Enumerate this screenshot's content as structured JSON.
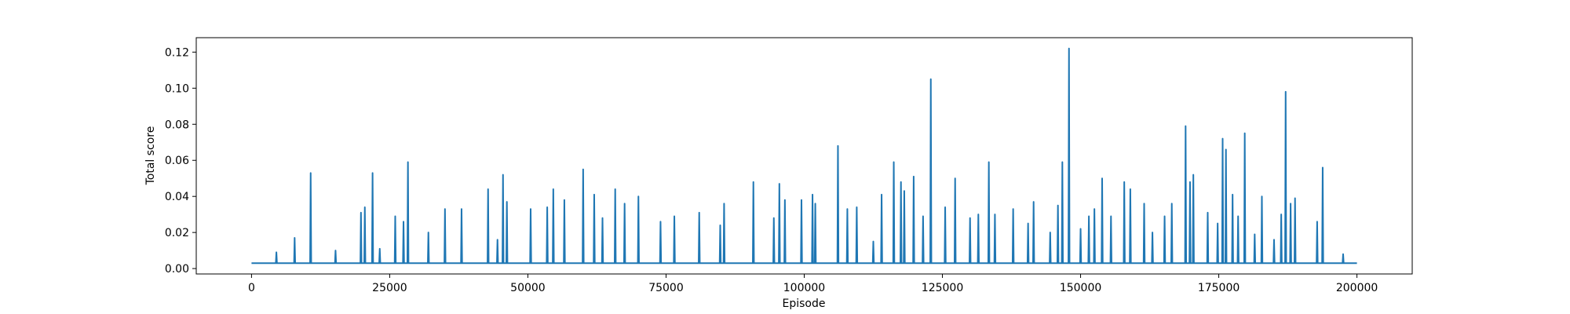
{
  "chart_data": {
    "type": "line",
    "x_label": "Episode",
    "y_label": "Total score",
    "color": "#1f77b4",
    "xlim": [
      -10000,
      210000
    ],
    "ylim": [
      -0.003,
      0.128
    ],
    "xticks": [
      0,
      25000,
      50000,
      75000,
      100000,
      125000,
      150000,
      175000,
      200000
    ],
    "yticks": [
      {
        "value": 0,
        "label": "0.00"
      },
      {
        "value": 0.02,
        "label": "0.02"
      },
      {
        "value": 0.04,
        "label": "0.04"
      },
      {
        "value": 0.06,
        "label": "0.06"
      },
      {
        "value": 0.08,
        "label": "0.08"
      },
      {
        "value": 0.1,
        "label": "0.10"
      },
      {
        "value": 0.12,
        "label": "0.12"
      }
    ],
    "x": [
      0,
      4400,
      4500,
      4600,
      7700,
      7800,
      7900,
      10600,
      10700,
      10800,
      15100,
      15200,
      15300,
      19700,
      19800,
      19900,
      20400,
      20500,
      20600,
      21800,
      21900,
      22000,
      23100,
      23200,
      23300,
      25900,
      26000,
      26100,
      27400,
      27500,
      27600,
      28200,
      28300,
      28400,
      31900,
      32000,
      32100,
      34900,
      35000,
      35100,
      37900,
      38000,
      38100,
      42700,
      42800,
      42900,
      44400,
      44500,
      44600,
      45400,
      45500,
      45600,
      46100,
      46200,
      46300,
      50400,
      50500,
      50600,
      53400,
      53500,
      53600,
      54500,
      54600,
      54700,
      56500,
      56600,
      56700,
      59900,
      60000,
      60100,
      61900,
      62000,
      62100,
      63400,
      63500,
      63600,
      65700,
      65800,
      65900,
      67400,
      67500,
      67600,
      69900,
      70000,
      70100,
      73900,
      74000,
      74100,
      76400,
      76500,
      76600,
      80900,
      81000,
      81100,
      84700,
      84800,
      84900,
      85400,
      85500,
      85600,
      90700,
      90800,
      90900,
      94400,
      94500,
      94600,
      95400,
      95500,
      95600,
      96400,
      96500,
      96600,
      99400,
      99500,
      99600,
      101400,
      101500,
      101600,
      101900,
      102000,
      102100,
      106000,
      106100,
      106200,
      107700,
      107800,
      107900,
      109400,
      109500,
      109600,
      112400,
      112500,
      112600,
      113900,
      114000,
      114100,
      116100,
      116200,
      116300,
      117400,
      117500,
      117600,
      118000,
      118100,
      118200,
      119700,
      119800,
      119900,
      121400,
      121500,
      121600,
      122800,
      122900,
      123000,
      125400,
      125500,
      125600,
      127200,
      127300,
      127400,
      129900,
      130000,
      130100,
      131400,
      131500,
      131600,
      133300,
      133400,
      133500,
      134400,
      134500,
      134600,
      137700,
      137800,
      137900,
      140400,
      140500,
      140600,
      141400,
      141500,
      141600,
      144400,
      144500,
      144600,
      145800,
      145900,
      146000,
      146600,
      146700,
      146800,
      147800,
      147900,
      148000,
      149900,
      150000,
      150100,
      151400,
      151500,
      151600,
      152400,
      152500,
      152600,
      153800,
      153900,
      154000,
      155400,
      155500,
      155600,
      157800,
      157900,
      158000,
      158900,
      159000,
      159100,
      161400,
      161500,
      161600,
      162900,
      163000,
      163100,
      165100,
      165200,
      165300,
      166400,
      166500,
      166600,
      168900,
      169000,
      169100,
      169700,
      169800,
      169900,
      170300,
      170400,
      170500,
      172900,
      173000,
      173100,
      174700,
      174800,
      174900,
      175600,
      175700,
      175800,
      176200,
      176300,
      176400,
      177400,
      177500,
      177600,
      178400,
      178500,
      178600,
      179600,
      179700,
      179800,
      181400,
      181500,
      181600,
      182700,
      182800,
      182900,
      184900,
      185000,
      185100,
      186200,
      186300,
      186400,
      187000,
      187100,
      187200,
      187900,
      188000,
      188100,
      188700,
      188800,
      188900,
      192700,
      192800,
      192900,
      193700,
      193800,
      193900,
      197400,
      197500,
      197600,
      200000
    ],
    "values": [
      0.003,
      0.003,
      0.009,
      0.003,
      0.003,
      0.017,
      0.003,
      0.003,
      0.053,
      0.003,
      0.003,
      0.01,
      0.003,
      0.003,
      0.031,
      0.003,
      0.003,
      0.034,
      0.003,
      0.003,
      0.053,
      0.003,
      0.003,
      0.011,
      0.003,
      0.003,
      0.029,
      0.003,
      0.003,
      0.026,
      0.003,
      0.003,
      0.059,
      0.003,
      0.003,
      0.02,
      0.003,
      0.003,
      0.033,
      0.003,
      0.003,
      0.033,
      0.003,
      0.003,
      0.044,
      0.003,
      0.003,
      0.016,
      0.003,
      0.003,
      0.052,
      0.003,
      0.003,
      0.037,
      0.003,
      0.003,
      0.033,
      0.003,
      0.003,
      0.034,
      0.003,
      0.003,
      0.044,
      0.003,
      0.003,
      0.038,
      0.003,
      0.003,
      0.055,
      0.003,
      0.003,
      0.041,
      0.003,
      0.003,
      0.028,
      0.003,
      0.003,
      0.044,
      0.003,
      0.003,
      0.036,
      0.003,
      0.003,
      0.04,
      0.003,
      0.003,
      0.026,
      0.003,
      0.003,
      0.029,
      0.003,
      0.003,
      0.031,
      0.003,
      0.003,
      0.024,
      0.003,
      0.003,
      0.036,
      0.003,
      0.003,
      0.048,
      0.003,
      0.003,
      0.028,
      0.003,
      0.003,
      0.047,
      0.003,
      0.003,
      0.038,
      0.003,
      0.003,
      0.038,
      0.003,
      0.003,
      0.041,
      0.003,
      0.003,
      0.036,
      0.003,
      0.003,
      0.068,
      0.003,
      0.003,
      0.033,
      0.003,
      0.003,
      0.034,
      0.003,
      0.003,
      0.015,
      0.003,
      0.003,
      0.041,
      0.003,
      0.003,
      0.059,
      0.003,
      0.003,
      0.048,
      0.003,
      0.003,
      0.043,
      0.003,
      0.003,
      0.051,
      0.003,
      0.003,
      0.029,
      0.003,
      0.003,
      0.105,
      0.003,
      0.003,
      0.034,
      0.003,
      0.003,
      0.05,
      0.003,
      0.003,
      0.028,
      0.003,
      0.003,
      0.03,
      0.003,
      0.003,
      0.059,
      0.003,
      0.003,
      0.03,
      0.003,
      0.003,
      0.033,
      0.003,
      0.003,
      0.025,
      0.003,
      0.003,
      0.037,
      0.003,
      0.003,
      0.02,
      0.003,
      0.003,
      0.035,
      0.003,
      0.003,
      0.059,
      0.003,
      0.003,
      0.122,
      0.003,
      0.003,
      0.022,
      0.003,
      0.003,
      0.029,
      0.003,
      0.003,
      0.033,
      0.003,
      0.003,
      0.05,
      0.003,
      0.003,
      0.029,
      0.003,
      0.003,
      0.048,
      0.003,
      0.003,
      0.044,
      0.003,
      0.003,
      0.036,
      0.003,
      0.003,
      0.02,
      0.003,
      0.003,
      0.029,
      0.003,
      0.003,
      0.036,
      0.003,
      0.003,
      0.079,
      0.003,
      0.003,
      0.048,
      0.003,
      0.003,
      0.052,
      0.003,
      0.003,
      0.031,
      0.003,
      0.003,
      0.025,
      0.003,
      0.003,
      0.072,
      0.003,
      0.003,
      0.066,
      0.003,
      0.003,
      0.041,
      0.003,
      0.003,
      0.029,
      0.003,
      0.003,
      0.075,
      0.003,
      0.003,
      0.019,
      0.003,
      0.003,
      0.04,
      0.003,
      0.003,
      0.016,
      0.003,
      0.003,
      0.03,
      0.003,
      0.003,
      0.098,
      0.003,
      0.003,
      0.036,
      0.003,
      0.003,
      0.039,
      0.003,
      0.003,
      0.026,
      0.003,
      0.003,
      0.056,
      0.003,
      0.003,
      0.008,
      0.003,
      0.003
    ]
  }
}
